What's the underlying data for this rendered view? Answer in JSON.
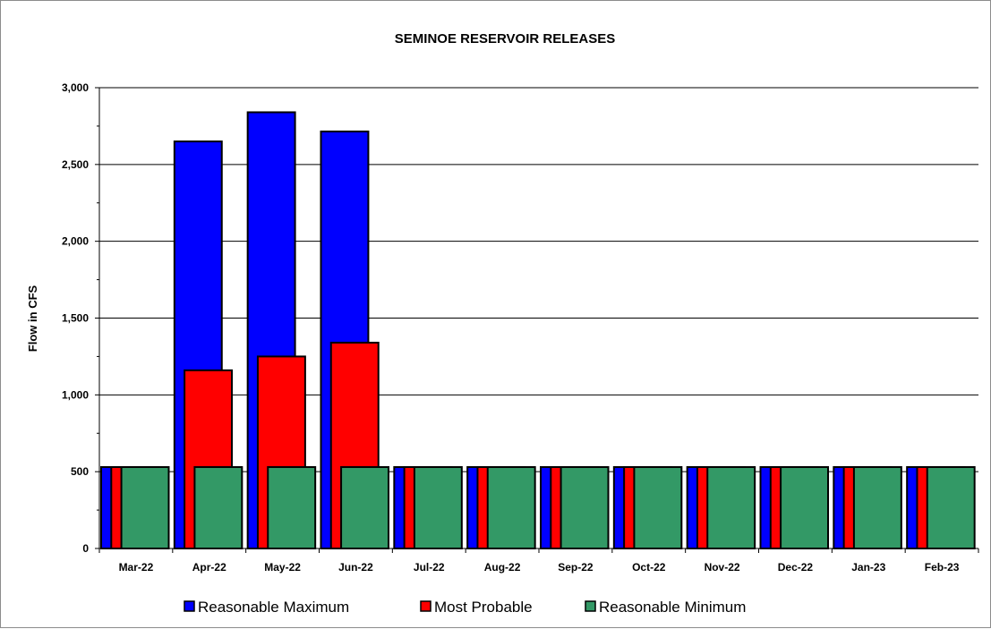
{
  "chart_data": {
    "type": "bar",
    "title": "SEMINOE RESERVOIR RELEASES",
    "ylabel": "Flow in CFS",
    "xlabel": "",
    "ylim": [
      0,
      3000
    ],
    "yticks": [
      "0",
      "500",
      "1,000",
      "1,500",
      "2,000",
      "2,500",
      "3,000"
    ],
    "ytick_values": [
      0,
      500,
      1000,
      1500,
      2000,
      2500,
      3000
    ],
    "categories": [
      "Mar-22",
      "Apr-22",
      "May-22",
      "Jun-22",
      "Jul-22",
      "Aug-22",
      "Sep-22",
      "Oct-22",
      "Nov-22",
      "Dec-22",
      "Jan-23",
      "Feb-23"
    ],
    "series": [
      {
        "name": "Reasonable Maximum",
        "color": "#0000ff",
        "values": [
          530,
          2650,
          2840,
          2715,
          530,
          530,
          530,
          530,
          530,
          530,
          530,
          530
        ]
      },
      {
        "name": "Most Probable",
        "color": "#ff0000",
        "values": [
          530,
          1160,
          1250,
          1340,
          530,
          530,
          530,
          530,
          530,
          530,
          530,
          530
        ]
      },
      {
        "name": "Reasonable Minimum",
        "color": "#339966",
        "values": [
          530,
          530,
          530,
          530,
          530,
          530,
          530,
          530,
          530,
          530,
          530,
          530
        ]
      }
    ],
    "grid": true,
    "legend_position": "bottom"
  }
}
